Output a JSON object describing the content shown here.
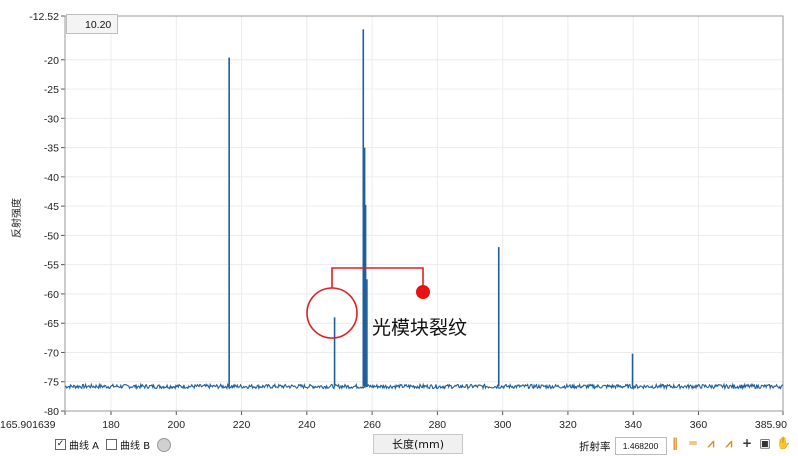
{
  "chart_data": {
    "type": "line",
    "xlabel": "长度(mm)",
    "ylabel": "反射强度",
    "xlim": [
      165.901639,
      385.9
    ],
    "ylim": [
      -80,
      -12.52
    ],
    "x_ticks": [
      "165.901639",
      "180",
      "200",
      "220",
      "240",
      "260",
      "280",
      "300",
      "320",
      "340",
      "360",
      "385.90"
    ],
    "y_ticks": [
      "-12.52",
      "-20",
      "-25",
      "-30",
      "-35",
      "-40",
      "-45",
      "-50",
      "-55",
      "-60",
      "-65",
      "-70",
      "-75",
      "-80"
    ],
    "baseline": -75.8,
    "series": [
      {
        "color": "#1f5f9a",
        "peaks": [
          {
            "x": 216.2,
            "y": -19.6
          },
          {
            "x": 248.5,
            "y": -64.0
          },
          {
            "x": 257.3,
            "y": -14.8
          },
          {
            "x": 257.7,
            "y": -35.0
          },
          {
            "x": 258.0,
            "y": -44.8
          },
          {
            "x": 258.4,
            "y": -57.5
          },
          {
            "x": 298.8,
            "y": -52.0
          },
          {
            "x": 339.8,
            "y": -70.2
          }
        ]
      }
    ],
    "annotation": {
      "text": "光模块裂纹",
      "x": 248.5,
      "y": -64.0
    }
  },
  "cursor": {
    "value": "10.20"
  },
  "legend": {
    "curve_a": "曲线 A",
    "curve_b": "曲线 B",
    "curve_a_checked": "✓"
  },
  "controls": {
    "refractive_label": "折射率",
    "refractive_value": "1.468200"
  },
  "toolbar_icons": [
    "vertical-cursors-icon",
    "horizontal-cursors-icon",
    "peak-marker-icon",
    "peak-marker-2-icon",
    "crosshair-icon",
    "zoom-icon",
    "pan-hand-icon"
  ]
}
